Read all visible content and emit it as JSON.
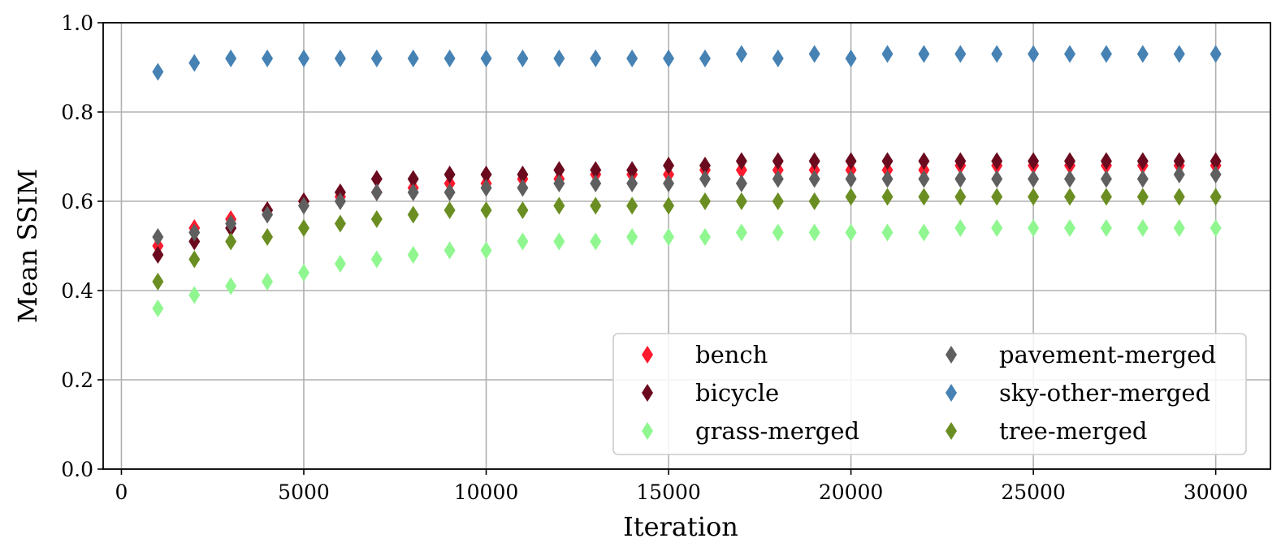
{
  "chart_data": {
    "type": "scatter",
    "title": "",
    "xlabel": "Iteration",
    "ylabel": "Mean SSIM",
    "xlim": [
      -500,
      31500
    ],
    "ylim": [
      0.0,
      1.0
    ],
    "xticks": [
      0,
      5000,
      10000,
      15000,
      20000,
      25000,
      30000
    ],
    "xtick_labels": [
      "0",
      "5000",
      "10000",
      "15000",
      "20000",
      "25000",
      "30000"
    ],
    "yticks": [
      0.0,
      0.2,
      0.4,
      0.6,
      0.8,
      1.0
    ],
    "ytick_labels": [
      "0.0",
      "0.2",
      "0.4",
      "0.6",
      "0.8",
      "1.0"
    ],
    "grid": true,
    "marker": "thin-diamond",
    "legend_position": "lower-right",
    "legend_columns": 2,
    "x": [
      1000,
      2000,
      3000,
      4000,
      5000,
      6000,
      7000,
      8000,
      9000,
      10000,
      11000,
      12000,
      13000,
      14000,
      15000,
      16000,
      17000,
      18000,
      19000,
      20000,
      21000,
      22000,
      23000,
      24000,
      25000,
      26000,
      27000,
      28000,
      29000,
      30000
    ],
    "series": [
      {
        "name": "bench",
        "color": "#ff1a2e",
        "values": [
          0.5,
          0.54,
          0.56,
          0.58,
          0.6,
          0.61,
          0.62,
          0.63,
          0.64,
          0.64,
          0.65,
          0.65,
          0.66,
          0.66,
          0.66,
          0.67,
          0.67,
          0.67,
          0.67,
          0.67,
          0.67,
          0.67,
          0.68,
          0.68,
          0.68,
          0.68,
          0.68,
          0.68,
          0.68,
          0.68
        ]
      },
      {
        "name": "bicycle",
        "color": "#6b0a1e",
        "values": [
          0.48,
          0.51,
          0.54,
          0.58,
          0.6,
          0.62,
          0.65,
          0.65,
          0.66,
          0.66,
          0.66,
          0.67,
          0.67,
          0.67,
          0.68,
          0.68,
          0.69,
          0.69,
          0.69,
          0.69,
          0.69,
          0.69,
          0.69,
          0.69,
          0.69,
          0.69,
          0.69,
          0.69,
          0.69,
          0.69
        ]
      },
      {
        "name": "grass-merged",
        "color": "#90f790",
        "values": [
          0.36,
          0.39,
          0.41,
          0.42,
          0.44,
          0.46,
          0.47,
          0.48,
          0.49,
          0.49,
          0.51,
          0.51,
          0.51,
          0.52,
          0.52,
          0.52,
          0.53,
          0.53,
          0.53,
          0.53,
          0.53,
          0.53,
          0.54,
          0.54,
          0.54,
          0.54,
          0.54,
          0.54,
          0.54,
          0.54
        ]
      },
      {
        "name": "pavement-merged",
        "color": "#5f5f5f",
        "values": [
          0.52,
          0.53,
          0.55,
          0.57,
          0.59,
          0.6,
          0.62,
          0.62,
          0.62,
          0.63,
          0.63,
          0.64,
          0.64,
          0.64,
          0.64,
          0.65,
          0.64,
          0.65,
          0.65,
          0.65,
          0.65,
          0.65,
          0.65,
          0.65,
          0.65,
          0.65,
          0.65,
          0.65,
          0.66,
          0.66
        ]
      },
      {
        "name": "sky-other-merged",
        "color": "#4682b4",
        "values": [
          0.89,
          0.91,
          0.92,
          0.92,
          0.92,
          0.92,
          0.92,
          0.92,
          0.92,
          0.92,
          0.92,
          0.92,
          0.92,
          0.92,
          0.92,
          0.92,
          0.93,
          0.92,
          0.93,
          0.92,
          0.93,
          0.93,
          0.93,
          0.93,
          0.93,
          0.93,
          0.93,
          0.93,
          0.93,
          0.93
        ]
      },
      {
        "name": "tree-merged",
        "color": "#6b8e23",
        "values": [
          0.42,
          0.47,
          0.51,
          0.52,
          0.54,
          0.55,
          0.56,
          0.57,
          0.58,
          0.58,
          0.58,
          0.59,
          0.59,
          0.59,
          0.59,
          0.6,
          0.6,
          0.6,
          0.6,
          0.61,
          0.61,
          0.61,
          0.61,
          0.61,
          0.61,
          0.61,
          0.61,
          0.61,
          0.61,
          0.61
        ]
      }
    ]
  }
}
